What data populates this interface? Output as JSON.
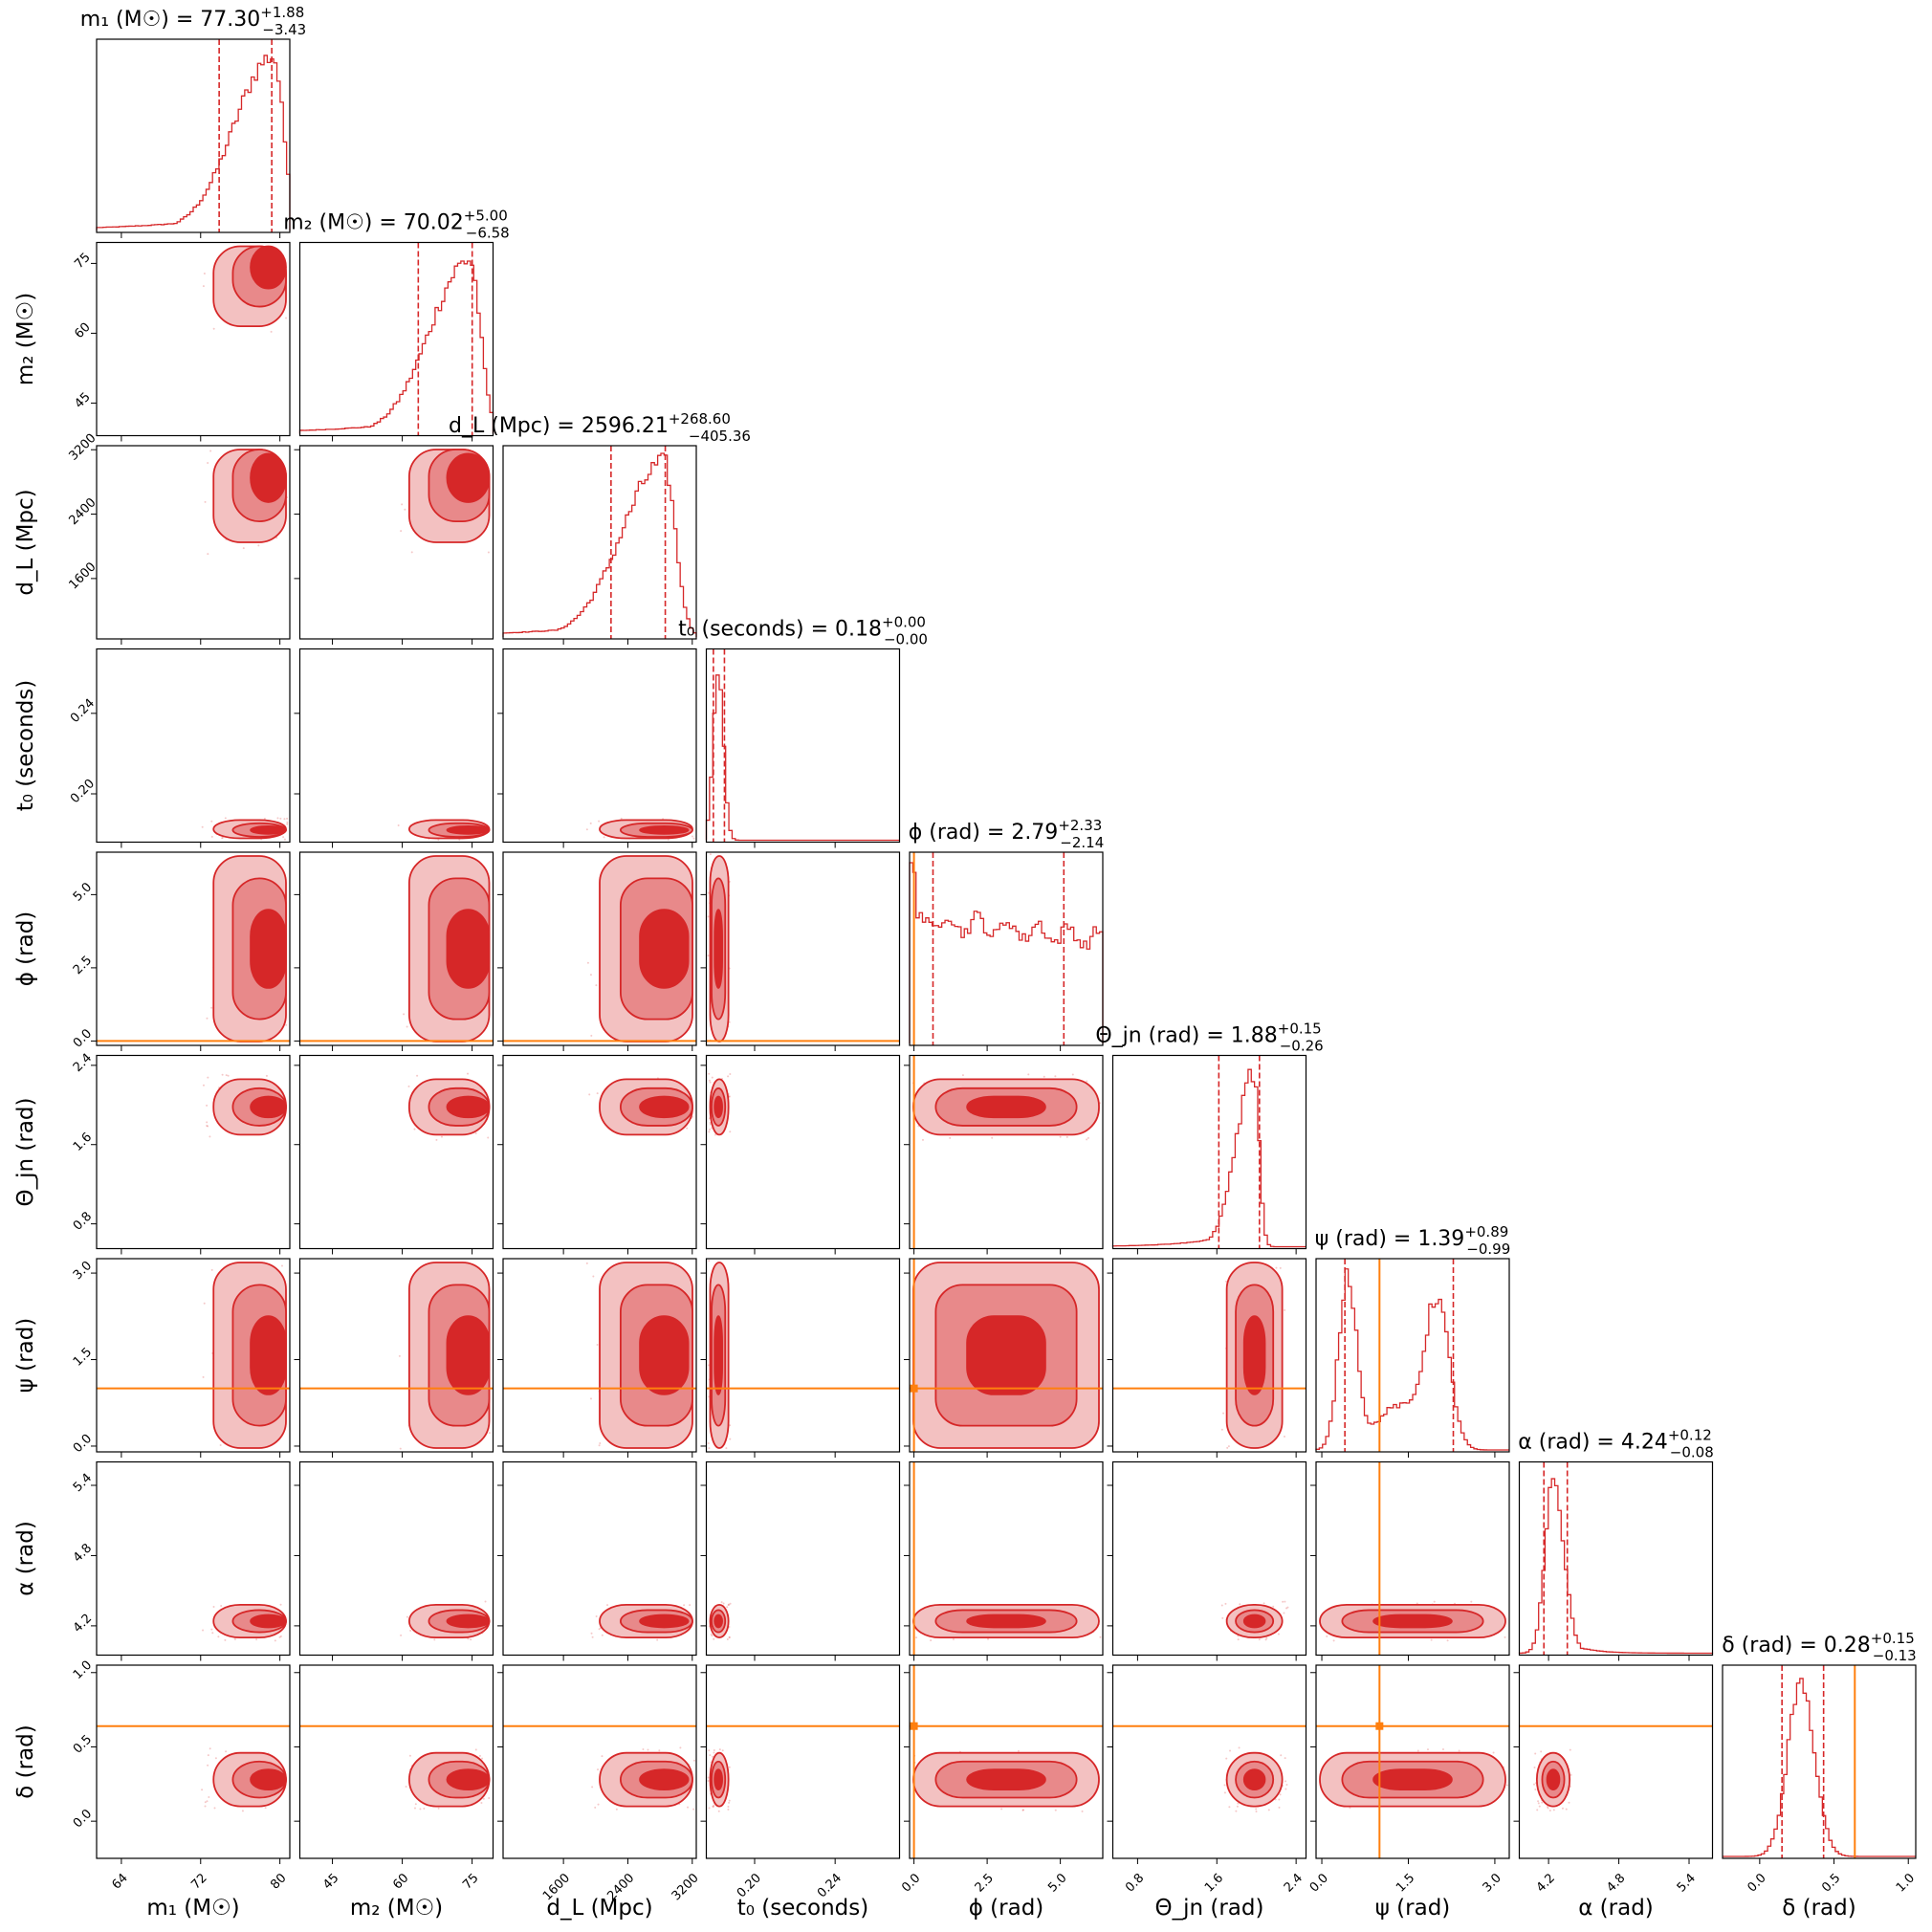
{
  "colors": {
    "posterior": "#d62728",
    "truth": "#ff7f0e"
  },
  "chart_data": {
    "type": "corner",
    "grid": false,
    "parameters": [
      {
        "key": "m1",
        "label": "m₁ (M☉)",
        "ticks": [
          "64",
          "72",
          "80"
        ],
        "tick_values": [
          64,
          72,
          80
        ],
        "range": [
          61.5,
          81.0
        ],
        "title": {
          "name": "m₁ (M☉)",
          "median": "77.30",
          "plus": "+1.88",
          "minus": "−3.43"
        },
        "quantile_lines": [
          73.87,
          79.18
        ],
        "mode": 79.3,
        "sd": 3.0,
        "skew": -1,
        "truth": null
      },
      {
        "key": "m2",
        "label": "m₂ (M☉)",
        "ticks": [
          "45",
          "60",
          "75"
        ],
        "tick_values": [
          45,
          60,
          75
        ],
        "range": [
          38.0,
          79.5
        ],
        "title": {
          "name": "m₂ (M☉)",
          "median": "70.02",
          "plus": "+5.00",
          "minus": "−6.58"
        },
        "quantile_lines": [
          63.44,
          75.02
        ],
        "mode": 74.5,
        "sd": 6.5,
        "skew": -1,
        "truth": null
      },
      {
        "key": "dL",
        "label": "d_L (Mpc)",
        "ticks": [
          "1600",
          "2400",
          "3200"
        ],
        "tick_values": [
          1600,
          2400,
          3200
        ],
        "range": [
          850,
          3250
        ],
        "title": {
          "name": "d_L (Mpc)",
          "median": "2596.21",
          "plus": "+268.60",
          "minus": "−405.36"
        },
        "quantile_lines": [
          2190.85,
          2864.81
        ],
        "mode": 2850,
        "sd": 400,
        "skew": -1,
        "truth": null
      },
      {
        "key": "t0",
        "label": "t₀ (seconds)",
        "ticks": [
          "0.20",
          "0.24"
        ],
        "tick_values": [
          0.2,
          0.24
        ],
        "range": [
          0.176,
          0.272
        ],
        "title": {
          "name": "t₀ (seconds)",
          "median": "0.18",
          "plus": "+0.00",
          "minus": "−0.00"
        },
        "quantile_lines": [
          0.1795,
          0.185
        ],
        "mode": 0.182,
        "sd": 0.0025,
        "skew": 0,
        "truth": null
      },
      {
        "key": "phi",
        "label": "ϕ (rad)",
        "ticks": [
          "0.0",
          "2.5",
          "5.0"
        ],
        "tick_values": [
          0.0,
          2.5,
          5.0
        ],
        "range": [
          -0.15,
          6.45
        ],
        "title": {
          "name": "ϕ (rad)",
          "median": "2.79",
          "plus": "+2.33",
          "minus": "−2.14"
        },
        "quantile_lines": [
          0.65,
          5.12
        ],
        "mode": null,
        "sd": null,
        "skew": 0,
        "truth": 0.0
      },
      {
        "key": "theta",
        "label": "Θ_jn (rad)",
        "ticks": [
          "0.8",
          "1.6",
          "2.4"
        ],
        "tick_values": [
          0.8,
          1.6,
          2.4
        ],
        "range": [
          0.55,
          2.5
        ],
        "title": {
          "name": "Θ_jn (rad)",
          "median": "1.88",
          "plus": "+0.15",
          "minus": "−0.26"
        },
        "quantile_lines": [
          1.62,
          2.03
        ],
        "mode": 1.98,
        "sd": 0.14,
        "skew": -1,
        "truth": null
      },
      {
        "key": "psi",
        "label": "ψ (rad)",
        "ticks": [
          "0.0",
          "1.5",
          "3.0"
        ],
        "tick_values": [
          0.0,
          1.5,
          3.0
        ],
        "range": [
          -0.1,
          3.25
        ],
        "title": {
          "name": "ψ (rad)",
          "median": "1.39",
          "plus": "+0.89",
          "minus": "−0.99"
        },
        "quantile_lines": [
          0.4,
          2.28
        ],
        "mode": null,
        "sd": null,
        "skew": 0,
        "truth": 1.0
      },
      {
        "key": "alpha",
        "label": "α (rad)",
        "ticks": [
          "4.2",
          "4.8",
          "5.4"
        ],
        "tick_values": [
          4.2,
          4.8,
          5.4
        ],
        "range": [
          3.95,
          5.6
        ],
        "title": {
          "name": "α (rad)",
          "median": "4.24",
          "plus": "+0.12",
          "minus": "−0.08"
        },
        "quantile_lines": [
          4.16,
          4.36
        ],
        "mode": 4.24,
        "sd": 0.07,
        "skew": 1,
        "truth": null
      },
      {
        "key": "delta",
        "label": "δ (rad)",
        "ticks": [
          "0.0",
          "0.5",
          "1.0"
        ],
        "tick_values": [
          0.0,
          0.5,
          1.0
        ],
        "range": [
          -0.25,
          1.05
        ],
        "title": {
          "name": "δ (rad)",
          "median": "0.28",
          "plus": "+0.15",
          "minus": "−0.13"
        },
        "quantile_lines": [
          0.15,
          0.43
        ],
        "mode": 0.28,
        "sd": 0.09,
        "skew": 0,
        "truth": 0.64
      }
    ]
  }
}
